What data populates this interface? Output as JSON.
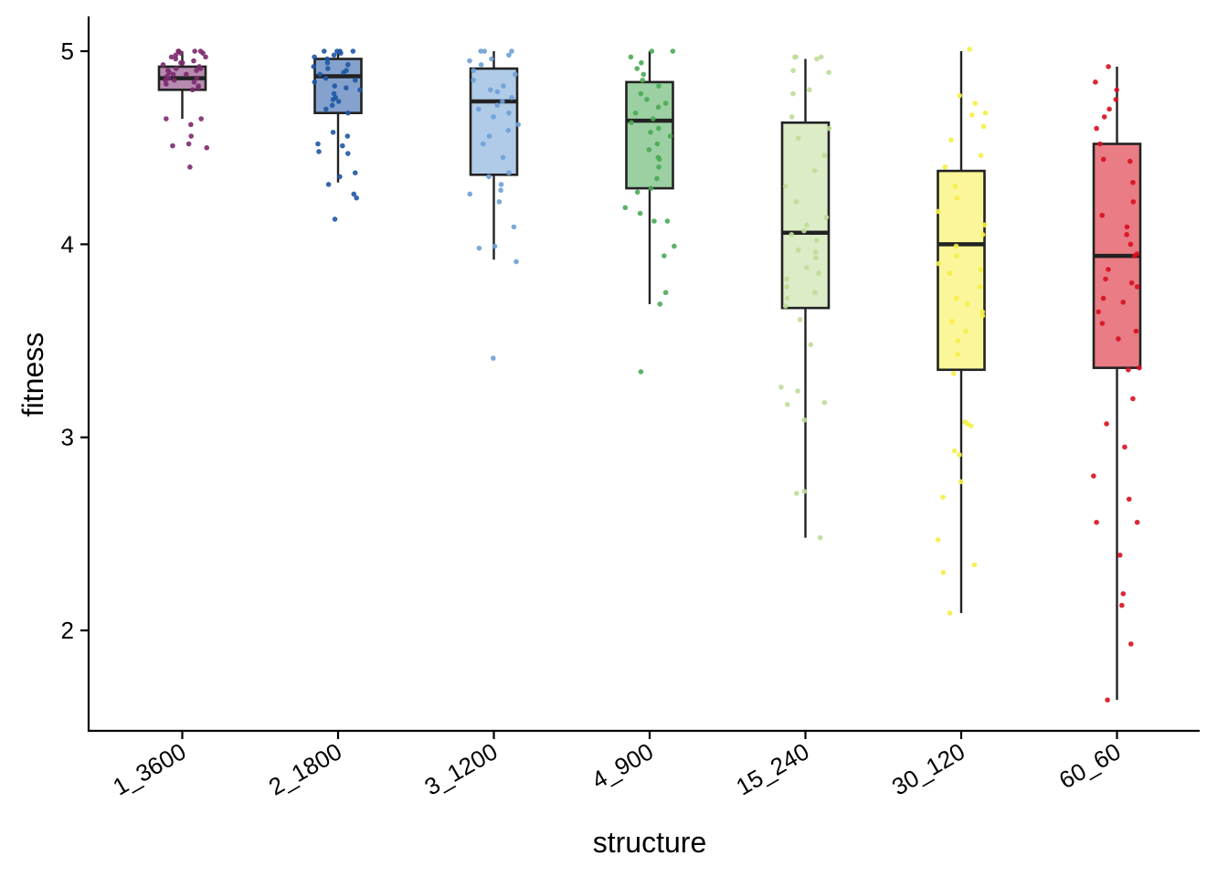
{
  "chart_data": {
    "type": "box",
    "xlabel": "structure",
    "ylabel": "fitness",
    "ylim": [
      1.48,
      5.18
    ],
    "yticks": [
      2,
      3,
      4,
      5
    ],
    "grid": false,
    "legend": "none",
    "categories": [
      "1_3600",
      "2_1800",
      "3_1200",
      "4_900",
      "15_240",
      "30_120",
      "60_60"
    ],
    "boxes": [
      {
        "category": "1_3600",
        "color": "#7b2a6e",
        "whisker_low": 4.65,
        "q1": 4.8,
        "median": 4.86,
        "q3": 4.92,
        "whisker_high": 5.0
      },
      {
        "category": "2_1800",
        "color": "#1f56a4",
        "whisker_low": 4.32,
        "q1": 4.68,
        "median": 4.87,
        "q3": 4.96,
        "whisker_high": 5.0
      },
      {
        "category": "3_1200",
        "color": "#6ea0d6",
        "whisker_low": 3.92,
        "q1": 4.36,
        "median": 4.74,
        "q3": 4.91,
        "whisker_high": 5.0
      },
      {
        "category": "4_900",
        "color": "#4aaa56",
        "whisker_low": 3.69,
        "q1": 4.29,
        "median": 4.64,
        "q3": 4.84,
        "whisker_high": 5.0
      },
      {
        "category": "15_240",
        "color": "#bfdc98",
        "whisker_low": 2.48,
        "q1": 3.67,
        "median": 4.06,
        "q3": 4.63,
        "whisker_high": 4.96
      },
      {
        "category": "30_120",
        "color": "#f5ee45",
        "whisker_low": 2.09,
        "q1": 3.35,
        "median": 4.0,
        "q3": 4.38,
        "whisker_high": 5.0
      },
      {
        "category": "60_60",
        "color": "#d7101f",
        "whisker_low": 1.64,
        "q1": 3.36,
        "median": 3.94,
        "q3": 4.52,
        "whisker_high": 4.92
      }
    ],
    "points": [
      [
        4.4,
        4.51,
        4.52,
        4.5,
        4.56,
        4.62,
        4.65,
        4.65,
        4.8,
        4.82,
        4.84,
        4.85,
        4.86,
        4.87,
        4.88,
        4.89,
        4.9,
        4.9,
        4.91,
        4.92,
        4.93,
        4.94,
        4.95,
        4.96,
        4.97,
        4.98,
        4.99,
        5.0,
        5.0,
        5.0,
        4.81,
        4.83,
        4.85,
        4.88,
        4.91,
        4.94,
        4.97,
        4.99,
        5.0,
        4.86
      ],
      [
        4.13,
        4.24,
        4.26,
        4.31,
        4.35,
        4.37,
        4.47,
        4.48,
        4.51,
        4.52,
        4.56,
        4.58,
        4.68,
        4.7,
        4.72,
        4.75,
        4.78,
        4.8,
        4.82,
        4.84,
        4.86,
        4.88,
        4.9,
        4.92,
        4.94,
        4.96,
        4.98,
        5.0,
        5.0,
        5.0,
        5.0,
        4.85,
        4.89,
        4.93,
        4.97,
        4.99,
        4.76,
        4.74,
        4.81,
        4.91
      ],
      [
        3.41,
        3.91,
        3.98,
        3.99,
        4.09,
        4.22,
        4.26,
        4.28,
        4.31,
        4.35,
        4.37,
        4.45,
        4.52,
        4.59,
        4.62,
        4.66,
        4.7,
        4.72,
        4.74,
        4.76,
        4.79,
        4.82,
        4.85,
        4.88,
        4.9,
        4.93,
        4.96,
        4.98,
        5.0,
        5.0,
        5.0,
        4.68,
        4.56,
        4.8,
        4.95
      ],
      [
        3.34,
        3.69,
        3.75,
        3.94,
        3.99,
        4.12,
        4.12,
        4.16,
        4.19,
        4.27,
        4.29,
        4.34,
        4.4,
        4.45,
        4.49,
        4.52,
        4.56,
        4.6,
        4.63,
        4.65,
        4.68,
        4.71,
        4.75,
        4.78,
        4.82,
        4.85,
        4.88,
        4.91,
        4.94,
        4.97,
        5.0,
        5.0,
        4.44,
        4.58,
        4.73
      ],
      [
        2.48,
        2.71,
        2.72,
        3.09,
        3.17,
        3.18,
        3.24,
        3.26,
        3.48,
        3.61,
        3.68,
        3.72,
        3.78,
        3.82,
        3.85,
        3.93,
        3.96,
        3.97,
        4.05,
        4.07,
        4.14,
        4.22,
        4.3,
        4.46,
        4.55,
        4.6,
        4.66,
        4.78,
        4.8,
        4.89,
        4.9,
        4.96,
        4.97,
        4.97,
        4.97,
        3.88,
        4.02,
        4.1,
        3.75,
        4.38
      ],
      [
        2.09,
        2.3,
        2.34,
        2.47,
        2.69,
        2.77,
        2.91,
        2.93,
        3.06,
        3.07,
        3.08,
        3.33,
        3.43,
        3.5,
        3.55,
        3.6,
        3.63,
        3.65,
        3.69,
        3.72,
        3.78,
        3.85,
        3.9,
        3.94,
        3.99,
        4.05,
        4.1,
        4.17,
        4.24,
        4.3,
        4.4,
        4.46,
        4.54,
        4.61,
        4.67,
        4.68,
        4.73,
        4.77,
        5.01,
        3.87
      ],
      [
        1.64,
        1.93,
        2.13,
        2.19,
        2.39,
        2.56,
        2.56,
        2.68,
        2.8,
        2.95,
        3.07,
        3.2,
        3.35,
        3.36,
        3.51,
        3.55,
        3.59,
        3.65,
        3.72,
        3.78,
        3.8,
        3.82,
        3.87,
        3.94,
        4.0,
        4.05,
        4.09,
        4.15,
        4.22,
        4.32,
        4.43,
        4.44,
        4.52,
        4.6,
        4.66,
        4.7,
        4.75,
        4.8,
        4.84,
        4.92,
        3.7,
        3.95
      ]
    ]
  }
}
